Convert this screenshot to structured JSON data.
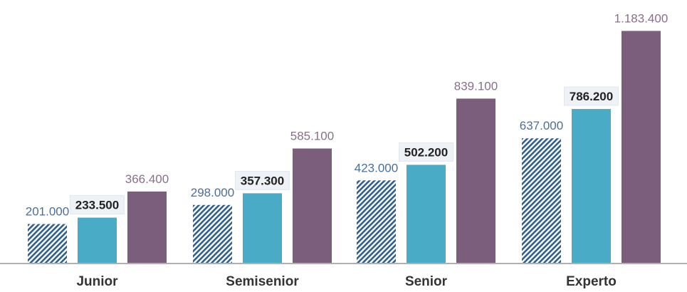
{
  "chart_data": {
    "type": "bar",
    "categories": [
      "Junior",
      "Semisenior",
      "Senior",
      "Experto"
    ],
    "series": [
      {
        "values": [
          201000,
          298000,
          423000,
          637000
        ],
        "labels": [
          "201.000",
          "298.000",
          "423.000",
          "637.000"
        ],
        "color": "#2f5f8f",
        "label_color": "#4a6f9b",
        "pattern": "hatched"
      },
      {
        "values": [
          233500,
          357300,
          502200,
          786200
        ],
        "labels": [
          "233.500",
          "357.300",
          "502.200",
          "786.200"
        ],
        "color": "#4aabc6",
        "label_color": "#222222",
        "label_style": "bold-boxed"
      },
      {
        "values": [
          366400,
          585100,
          839100,
          1183400
        ],
        "labels": [
          "366.400",
          "585.100",
          "839.100",
          "1.183.400"
        ],
        "color": "#7b5e7b",
        "label_color": "#8a6f8a"
      }
    ],
    "ylim": [
      0,
      1200000
    ],
    "grid": false,
    "legend": "none"
  }
}
